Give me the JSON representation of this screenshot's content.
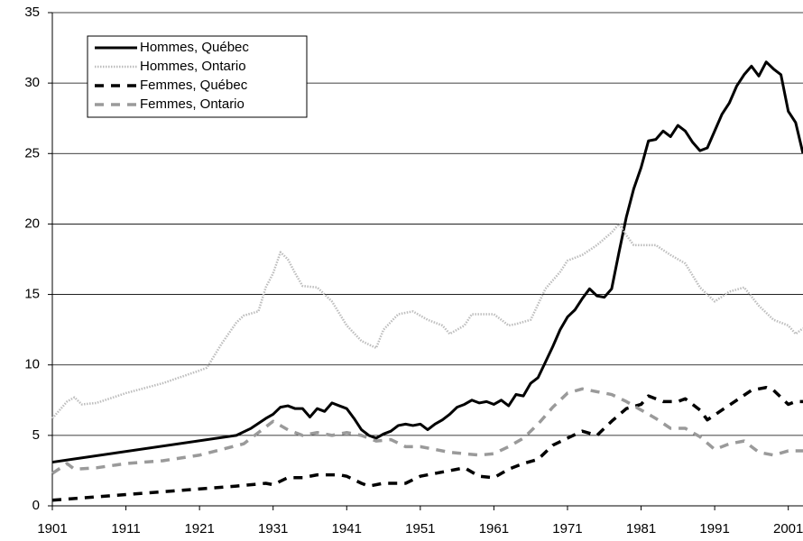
{
  "chart_data": {
    "type": "line",
    "xlim": [
      1901,
      2003
    ],
    "xticks": [
      1901,
      1911,
      1921,
      1931,
      1941,
      1951,
      1961,
      1971,
      1981,
      1991,
      2001
    ],
    "ylim": [
      0,
      35
    ],
    "yticks": [
      0,
      5,
      10,
      15,
      20,
      25,
      30,
      35
    ],
    "grid": true,
    "legend": "top-left",
    "series": [
      {
        "name": "Hommes, Québec",
        "color": "#000000",
        "style": "solid",
        "x": [
          1901,
          1926,
          1928,
          1930,
          1931,
          1932,
          1933,
          1934,
          1935,
          1936,
          1937,
          1938,
          1939,
          1940,
          1941,
          1942,
          1943,
          1944,
          1945,
          1946,
          1947,
          1948,
          1949,
          1950,
          1951,
          1952,
          1953,
          1954,
          1955,
          1956,
          1957,
          1958,
          1959,
          1960,
          1961,
          1962,
          1963,
          1964,
          1965,
          1966,
          1967,
          1968,
          1969,
          1970,
          1971,
          1972,
          1973,
          1974,
          1975,
          1976,
          1977,
          1978,
          1979,
          1980,
          1981,
          1982,
          1983,
          1984,
          1985,
          1986,
          1987,
          1988,
          1989,
          1990,
          1991,
          1992,
          1993,
          1994,
          1995,
          1996,
          1997,
          1998,
          1999,
          2000,
          2001,
          2002,
          2003
        ],
        "values": [
          3.1,
          5.0,
          5.5,
          6.2,
          6.5,
          7.0,
          7.1,
          6.9,
          6.9,
          6.3,
          6.9,
          6.7,
          7.3,
          7.1,
          6.9,
          6.2,
          5.4,
          5.0,
          4.8,
          5.1,
          5.3,
          5.7,
          5.8,
          5.7,
          5.8,
          5.4,
          5.8,
          6.1,
          6.5,
          7.0,
          7.2,
          7.5,
          7.3,
          7.4,
          7.2,
          7.5,
          7.1,
          7.9,
          7.8,
          8.7,
          9.1,
          10.2,
          11.3,
          12.5,
          13.4,
          13.9,
          14.7,
          15.4,
          14.9,
          14.8,
          15.4,
          18.0,
          20.5,
          22.5,
          24.0,
          25.9,
          26.0,
          26.6,
          26.2,
          27.0,
          26.6,
          25.8,
          25.2,
          25.4,
          26.6,
          27.8,
          28.6,
          29.8,
          30.6,
          31.2,
          30.5,
          31.5,
          31.0,
          30.6,
          28.0,
          27.2,
          25.0
        ]
      },
      {
        "name": "Hommes, Ontario",
        "color": "#bdbdbd",
        "style": "dotted",
        "x": [
          1901,
          1903,
          1904,
          1905,
          1907,
          1911,
          1916,
          1921,
          1922,
          1924,
          1926,
          1927,
          1929,
          1930,
          1931,
          1932,
          1933,
          1934,
          1935,
          1937,
          1939,
          1941,
          1943,
          1945,
          1946,
          1948,
          1950,
          1952,
          1954,
          1955,
          1957,
          1958,
          1961,
          1963,
          1964,
          1966,
          1968,
          1970,
          1971,
          1973,
          1975,
          1977,
          1978,
          1979,
          1980,
          1983,
          1985,
          1987,
          1989,
          1991,
          1993,
          1995,
          1997,
          1999,
          2001,
          2002,
          2003
        ],
        "values": [
          6.2,
          7.4,
          7.7,
          7.2,
          7.3,
          8.0,
          8.7,
          9.6,
          9.8,
          11.5,
          13.0,
          13.5,
          13.8,
          15.5,
          16.5,
          18.0,
          17.5,
          16.5,
          15.6,
          15.5,
          14.5,
          12.8,
          11.7,
          11.2,
          12.5,
          13.6,
          13.8,
          13.2,
          12.8,
          12.2,
          12.8,
          13.6,
          13.6,
          12.8,
          12.9,
          13.2,
          15.4,
          16.6,
          17.4,
          17.8,
          18.5,
          19.4,
          20.0,
          19.2,
          18.5,
          18.5,
          17.8,
          17.2,
          15.5,
          14.5,
          15.2,
          15.5,
          14.2,
          13.2,
          12.8,
          12.2,
          12.6
        ]
      },
      {
        "name": "Femmes, Québec",
        "color": "#000000",
        "style": "dashed",
        "x": [
          1901,
          1911,
          1921,
          1926,
          1930,
          1931,
          1933,
          1935,
          1937,
          1940,
          1941,
          1943,
          1944,
          1946,
          1949,
          1951,
          1955,
          1957,
          1959,
          1961,
          1963,
          1965,
          1967,
          1969,
          1971,
          1973,
          1975,
          1977,
          1979,
          1981,
          1982,
          1984,
          1986,
          1987,
          1989,
          1990,
          1992,
          1994,
          1996,
          1998,
          1999,
          2001,
          2002,
          2003
        ],
        "values": [
          0.4,
          0.8,
          1.2,
          1.4,
          1.6,
          1.5,
          2.0,
          2.0,
          2.2,
          2.2,
          2.1,
          1.6,
          1.4,
          1.6,
          1.6,
          2.1,
          2.5,
          2.7,
          2.1,
          2.0,
          2.6,
          3.0,
          3.3,
          4.3,
          4.8,
          5.3,
          5.0,
          6.0,
          6.9,
          7.2,
          7.8,
          7.4,
          7.4,
          7.6,
          6.8,
          6.1,
          6.8,
          7.5,
          8.2,
          8.4,
          8.2,
          7.2,
          7.4,
          7.4
        ]
      },
      {
        "name": "Femmes, Ontario",
        "color": "#9a9a9a",
        "style": "dashed",
        "x": [
          1901,
          1903,
          1904,
          1907,
          1911,
          1916,
          1921,
          1924,
          1927,
          1929,
          1931,
          1933,
          1935,
          1937,
          1939,
          1941,
          1943,
          1945,
          1947,
          1949,
          1951,
          1955,
          1959,
          1961,
          1963,
          1965,
          1967,
          1969,
          1971,
          1973,
          1975,
          1977,
          1979,
          1981,
          1983,
          1985,
          1987,
          1989,
          1991,
          1993,
          1995,
          1997,
          1999,
          2001,
          2003
        ],
        "values": [
          2.3,
          3.0,
          2.6,
          2.7,
          3.0,
          3.2,
          3.6,
          4.0,
          4.4,
          5.2,
          6.0,
          5.4,
          5.0,
          5.2,
          5.0,
          5.2,
          5.0,
          4.6,
          4.7,
          4.2,
          4.2,
          3.8,
          3.6,
          3.7,
          4.2,
          4.8,
          5.8,
          7.0,
          8.0,
          8.3,
          8.1,
          7.9,
          7.4,
          6.8,
          6.2,
          5.5,
          5.5,
          4.9,
          4.0,
          4.4,
          4.6,
          3.8,
          3.6,
          3.9,
          3.9
        ]
      }
    ]
  }
}
